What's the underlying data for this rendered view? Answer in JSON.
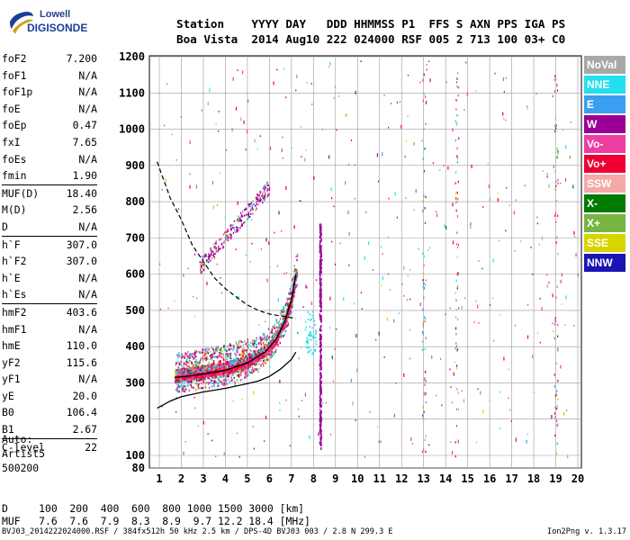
{
  "logo": {
    "line1": "Lowell",
    "line2": "DIGISONDE"
  },
  "header": {
    "line1": "Station    YYYY DAY   DDD HHMMSS P1  FFS S AXN PPS IGA PS",
    "line2": "Boa Vista  2014 Aug10 222 024000 RSF 005 2 713 100 03+ C0"
  },
  "params": [
    {
      "label": "foF2",
      "value": "7.200"
    },
    {
      "label": "foF1",
      "value": "N/A"
    },
    {
      "label": "foF1p",
      "value": "N/A"
    },
    {
      "label": "foE",
      "value": "N/A"
    },
    {
      "label": "foEp",
      "value": "0.47"
    },
    {
      "label": "fxI",
      "value": "7.65"
    },
    {
      "label": "foEs",
      "value": "N/A"
    },
    {
      "label": "fmin",
      "value": "1.90"
    },
    {
      "label": "MUF(D)",
      "value": "18.40"
    },
    {
      "label": "M(D)",
      "value": "2.56"
    },
    {
      "label": "D",
      "value": "N/A"
    },
    {
      "label": "h`F",
      "value": "307.0"
    },
    {
      "label": "h`F2",
      "value": "307.0"
    },
    {
      "label": "h`E",
      "value": "N/A"
    },
    {
      "label": "h`Es",
      "value": "N/A"
    },
    {
      "label": "hmF2",
      "value": "403.6"
    },
    {
      "label": "hmF1",
      "value": "N/A"
    },
    {
      "label": "hmE",
      "value": "110.0"
    },
    {
      "label": "yF2",
      "value": "115.6"
    },
    {
      "label": "yF1",
      "value": "N/A"
    },
    {
      "label": "yE",
      "value": "20.0"
    },
    {
      "label": "B0",
      "value": "106.4"
    },
    {
      "label": "B1",
      "value": "2.67"
    },
    {
      "label": "C-level",
      "value": "22"
    }
  ],
  "auto": {
    "line1": "Auto:",
    "line2": "Artist5",
    "line3": "500200"
  },
  "dmuf": {
    "d_line": "D     100  200  400  600  800 1000 1500 3000 [km]",
    "muf_line": "MUF   7.6  7.6  7.9  8.3  8.9  9.7 12.2 18.4 [MHz]"
  },
  "footer": {
    "left": "BVJ03_2014222024000.RSF / 384fx512h 50 kHz 2.5 km / DPS-4D BVJ03 003 / 2.8 N 299.3 E",
    "right": "Ion2Png v. 1.3.17"
  },
  "legend": [
    {
      "label": "NoVal",
      "color": "#a8a8a8"
    },
    {
      "label": "NNE",
      "color": "#22e0ee"
    },
    {
      "label": "E",
      "color": "#3a9ff0"
    },
    {
      "label": "W",
      "color": "#9b0096"
    },
    {
      "label": "Vo-",
      "color": "#ee3da0"
    },
    {
      "label": "Vo+",
      "color": "#ee0033"
    },
    {
      "label": "SSW",
      "color": "#f4a9a8"
    },
    {
      "label": "X-",
      "color": "#007a00"
    },
    {
      "label": "X+",
      "color": "#78b442"
    },
    {
      "label": "SSE",
      "color": "#d8d400"
    },
    {
      "label": "NNW",
      "color": "#1a14b4"
    }
  ],
  "chart_data": {
    "type": "scatter",
    "x_ticks": [
      "1",
      "2",
      "3",
      "4",
      "5",
      "6",
      "7",
      "8",
      "9",
      "10",
      "11",
      "12",
      "13",
      "14",
      "15",
      "16",
      "17",
      "18",
      "19",
      "20"
    ],
    "y_ticks": [
      "80",
      "100",
      "200",
      "300",
      "400",
      "500",
      "600",
      "700",
      "800",
      "900",
      "1000",
      "1100",
      "1200"
    ],
    "xlim": [
      1,
      20
    ],
    "ylim": [
      80,
      1200
    ],
    "grid": true,
    "profile_curve": [
      [
        0.9,
        230
      ],
      [
        1.5,
        250
      ],
      [
        2,
        262
      ],
      [
        3,
        275
      ],
      [
        4,
        285
      ],
      [
        5,
        298
      ],
      [
        5.5,
        305
      ],
      [
        6,
        318
      ],
      [
        6.5,
        338
      ],
      [
        7.0,
        365
      ],
      [
        7.2,
        385
      ]
    ],
    "trace_curve": [
      [
        1.7,
        315
      ],
      [
        2.5,
        320
      ],
      [
        3,
        325
      ],
      [
        4,
        335
      ],
      [
        5,
        355
      ],
      [
        5.8,
        385
      ],
      [
        6.3,
        420
      ],
      [
        6.7,
        470
      ],
      [
        7.0,
        530
      ],
      [
        7.2,
        600
      ]
    ],
    "dashed_curve": [
      [
        0.9,
        910
      ],
      [
        1.5,
        810
      ],
      [
        2,
        750
      ],
      [
        2.5,
        680
      ],
      [
        3,
        635
      ],
      [
        3.5,
        590
      ],
      [
        4,
        560
      ],
      [
        4.5,
        537
      ],
      [
        5,
        515
      ],
      [
        5.5,
        500
      ],
      [
        6,
        490
      ],
      [
        6.5,
        485
      ],
      [
        7.0,
        480
      ],
      [
        7.2,
        478
      ]
    ],
    "echo_regions": [
      {
        "x_range": [
          1.7,
          7.3
        ],
        "h_low": 290,
        "h_high": 620,
        "kind": "F2 trace"
      },
      {
        "x_range": [
          3.4,
          6.0
        ],
        "h_low": 620,
        "h_high": 900,
        "kind": "second hop"
      },
      {
        "x_range": [
          8.2,
          8.4
        ],
        "h_low": 120,
        "h_high": 1050,
        "kind": "vertical interference"
      }
    ]
  }
}
